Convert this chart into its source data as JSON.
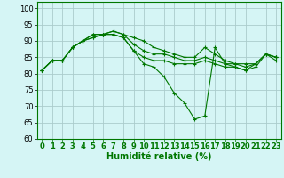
{
  "background_color": "#d5f5f5",
  "grid_color": "#aacccc",
  "line_color": "#007700",
  "xlabel": "Humidité relative (%)",
  "xlabel_fontsize": 7,
  "tick_fontsize": 6,
  "ylim": [
    60,
    102
  ],
  "xlim": [
    -0.5,
    23.5
  ],
  "yticks": [
    60,
    65,
    70,
    75,
    80,
    85,
    90,
    95,
    100
  ],
  "xticks": [
    0,
    1,
    2,
    3,
    4,
    5,
    6,
    7,
    8,
    9,
    10,
    11,
    12,
    13,
    14,
    15,
    16,
    17,
    18,
    19,
    20,
    21,
    22,
    23
  ],
  "series": [
    [
      81,
      84,
      84,
      88,
      90,
      92,
      92,
      93,
      92,
      91,
      90,
      88,
      87,
      86,
      85,
      85,
      88,
      86,
      84,
      83,
      83,
      83,
      86,
      85
    ],
    [
      81,
      84,
      84,
      88,
      90,
      92,
      92,
      93,
      92,
      89,
      87,
      86,
      86,
      85,
      84,
      84,
      85,
      84,
      83,
      83,
      82,
      83,
      86,
      85
    ],
    [
      81,
      84,
      84,
      88,
      90,
      91,
      92,
      92,
      91,
      87,
      85,
      84,
      84,
      83,
      83,
      83,
      84,
      83,
      82,
      82,
      81,
      83,
      86,
      85
    ],
    [
      81,
      84,
      84,
      88,
      90,
      91,
      92,
      92,
      91,
      87,
      83,
      82,
      79,
      74,
      71,
      66,
      67,
      88,
      83,
      82,
      81,
      82,
      86,
      84
    ]
  ]
}
